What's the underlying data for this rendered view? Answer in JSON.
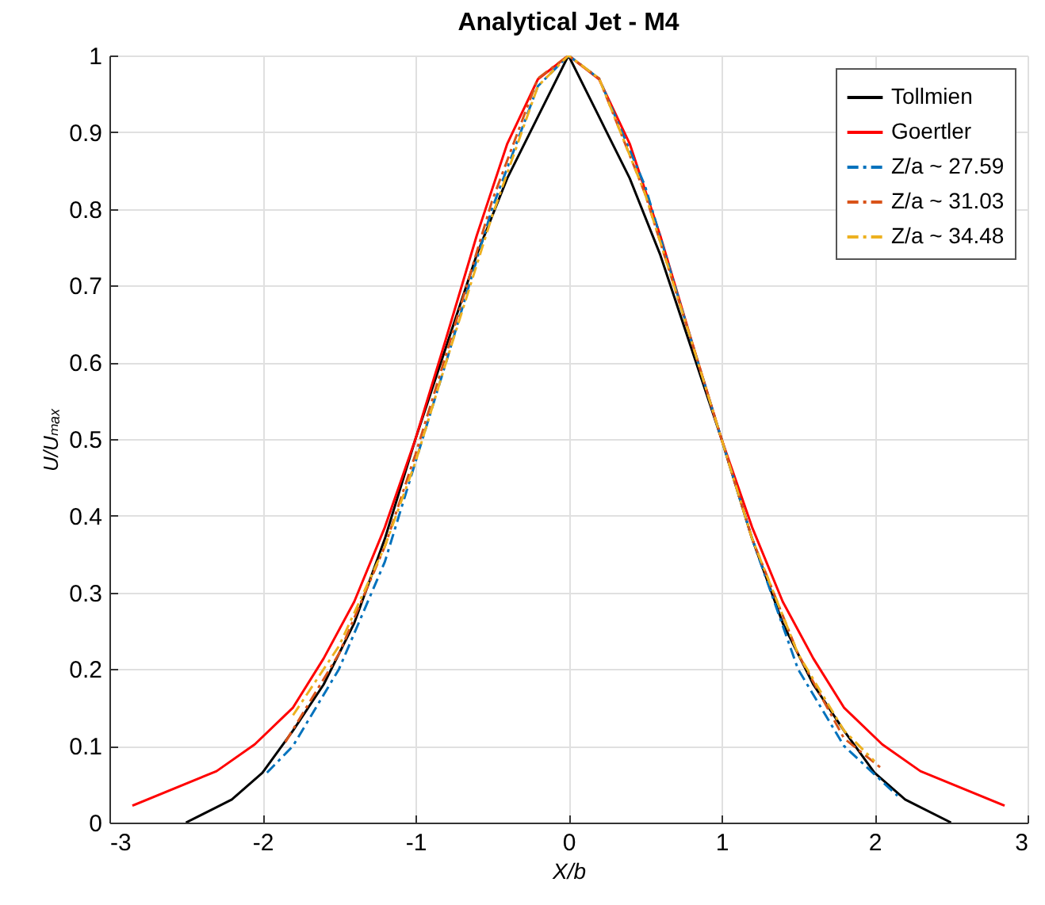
{
  "chart_data": {
    "type": "line",
    "title": "Analytical Jet - M4",
    "xlabel": "X/b",
    "ylabel": "U/Uₘₐₓ",
    "xlim": [
      -3,
      3
    ],
    "xticks": [
      -3,
      -2,
      -1,
      0,
      1,
      2,
      3
    ],
    "ylim": [
      0,
      1
    ],
    "yticks": [
      0,
      0.1,
      0.2,
      0.3,
      0.4,
      0.5,
      0.6,
      0.7,
      0.8,
      0.9,
      1
    ],
    "grid": true,
    "legend": "top right",
    "series": [
      {
        "name": "Tollmien",
        "color": "#000000",
        "line_style": "solid",
        "x": [
          -2.5,
          -2.2,
          -2.0,
          -1.8,
          -1.6,
          -1.4,
          -1.2,
          -1.0,
          -0.8,
          -0.6,
          -0.4,
          -0.2,
          0,
          0.2,
          0.4,
          0.6,
          0.8,
          1.0,
          1.2,
          1.4,
          1.6,
          1.8,
          2.0,
          2.2,
          2.5
        ],
        "values": [
          0,
          0.03,
          0.065,
          0.12,
          0.18,
          0.26,
          0.37,
          0.5,
          0.62,
          0.74,
          0.84,
          0.92,
          1,
          0.92,
          0.84,
          0.74,
          0.62,
          0.5,
          0.37,
          0.26,
          0.18,
          0.12,
          0.065,
          0.03,
          0
        ]
      },
      {
        "name": "Goertler",
        "color": "#ff0000",
        "line_style": "solid",
        "x": [
          -2.85,
          -2.3,
          -2.05,
          -1.8,
          -1.6,
          -1.4,
          -1.2,
          -1.0,
          -0.8,
          -0.6,
          -0.4,
          -0.2,
          0,
          0.2,
          0.4,
          0.6,
          0.8,
          1.0,
          1.2,
          1.4,
          1.6,
          1.8,
          2.05,
          2.3,
          2.85
        ],
        "values": [
          0.022,
          0.067,
          0.102,
          0.15,
          0.214,
          0.288,
          0.385,
          0.5,
          0.631,
          0.765,
          0.885,
          0.969,
          1,
          0.969,
          0.885,
          0.765,
          0.631,
          0.5,
          0.385,
          0.288,
          0.214,
          0.15,
          0.102,
          0.067,
          0.022
        ]
      },
      {
        "name": "Z/a ~ 27.59",
        "color": "#0072bd",
        "line_style": "dashed",
        "x": [
          -1.97,
          -1.8,
          -1.5,
          -1.2,
          -1.0,
          -0.8,
          -0.5,
          -0.2,
          0,
          0.2,
          0.5,
          0.8,
          1.0,
          1.2,
          1.5,
          1.8,
          2.15
        ],
        "values": [
          0.065,
          0.1,
          0.2,
          0.34,
          0.47,
          0.6,
          0.8,
          0.96,
          1,
          0.97,
          0.83,
          0.63,
          0.5,
          0.37,
          0.2,
          0.1,
          0.035
        ]
      },
      {
        "name": "Z/a ~ 31.03",
        "color": "#d95319",
        "line_style": "dashed",
        "x": [
          -1.85,
          -1.5,
          -1.2,
          -1.0,
          -0.8,
          -0.5,
          -0.2,
          0,
          0.2,
          0.5,
          0.8,
          1.0,
          1.2,
          1.5,
          1.8,
          2.05
        ],
        "values": [
          0.105,
          0.22,
          0.36,
          0.48,
          0.61,
          0.81,
          0.97,
          1,
          0.97,
          0.82,
          0.63,
          0.5,
          0.37,
          0.22,
          0.11,
          0.07
        ]
      },
      {
        "name": "Z/a ~ 34.48",
        "color": "#edb120",
        "line_style": "dashed",
        "x": [
          -1.8,
          -1.5,
          -1.2,
          -1.0,
          -0.8,
          -0.5,
          -0.2,
          0,
          0.2,
          0.5,
          0.8,
          1.0,
          1.2,
          1.5,
          1.8,
          2.0
        ],
        "values": [
          0.14,
          0.23,
          0.36,
          0.47,
          0.6,
          0.79,
          0.96,
          1,
          0.97,
          0.82,
          0.63,
          0.5,
          0.37,
          0.22,
          0.12,
          0.08
        ]
      }
    ]
  }
}
